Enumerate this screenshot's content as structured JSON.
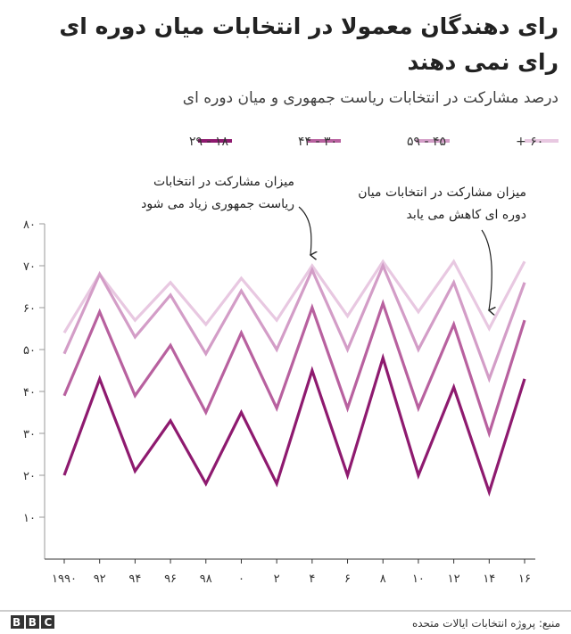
{
  "chart_data": {
    "type": "line",
    "title": "رای دهندگان معمولا در انتخابات میان دوره ای رای نمی دهند",
    "subtitle": "درصد مشارکت در انتخابات ریاست جمهوری و میان دوره ای",
    "x": [
      1990,
      1992,
      1994,
      1996,
      1998,
      2000,
      2002,
      2004,
      2006,
      2008,
      2010,
      2012,
      2014,
      2016
    ],
    "xlim": [
      1990,
      2016
    ],
    "xticks": [
      {
        "value": 1990,
        "label": "۱۹۹۰"
      },
      {
        "value": 1992,
        "label": "۹۲"
      },
      {
        "value": 1994,
        "label": "۹۴"
      },
      {
        "value": 1996,
        "label": "۹۶"
      },
      {
        "value": 1998,
        "label": "۹۸"
      },
      {
        "value": 2000,
        "label": "۰"
      },
      {
        "value": 2002,
        "label": "۲"
      },
      {
        "value": 2004,
        "label": "۴"
      },
      {
        "value": 2006,
        "label": "۶"
      },
      {
        "value": 2008,
        "label": "۸"
      },
      {
        "value": 2010,
        "label": "۱۰"
      },
      {
        "value": 2012,
        "label": "۱۲"
      },
      {
        "value": 2014,
        "label": "۱۴"
      },
      {
        "value": 2016,
        "label": "۱۶"
      }
    ],
    "ylim": [
      0,
      80
    ],
    "yticks": [
      {
        "value": 10,
        "label": "۱۰"
      },
      {
        "value": 20,
        "label": "۲۰"
      },
      {
        "value": 30,
        "label": "۳۰"
      },
      {
        "value": 40,
        "label": "۴۰"
      },
      {
        "value": 50,
        "label": "۵۰"
      },
      {
        "value": 60,
        "label": "۶۰"
      },
      {
        "value": 70,
        "label": "۷۰"
      },
      {
        "value": 80,
        "label": "۸۰"
      }
    ],
    "series": [
      {
        "name": "۱۸ - ۲۹",
        "color": "#8e1a6f",
        "values": [
          20,
          43,
          21,
          33,
          18,
          35,
          18,
          45,
          20,
          48,
          20,
          41,
          16,
          43
        ]
      },
      {
        "name": "۳۰ - ۴۴",
        "color": "#b8619f",
        "values": [
          39,
          59,
          39,
          51,
          35,
          54,
          36,
          60,
          36,
          61,
          36,
          56,
          30,
          57
        ]
      },
      {
        "name": "۴۵ - ۵۹",
        "color": "#d39dc7",
        "values": [
          49,
          68,
          53,
          63,
          49,
          64,
          50,
          69,
          50,
          70,
          50,
          66,
          43,
          66
        ]
      },
      {
        "name": "۶۰ +",
        "color": "#e8c8e1",
        "values": [
          54,
          68,
          57,
          66,
          56,
          67,
          57,
          70,
          58,
          71,
          59,
          71,
          55,
          71
        ]
      }
    ],
    "annotations": [
      {
        "lines": [
          "میزان مشارکت در انتخابات",
          "ریاست جمهوری زیاد می شود"
        ]
      },
      {
        "lines": [
          "میزان مشارکت در انتخابات میان",
          "دوره ای کاهش می یابد"
        ]
      }
    ],
    "source": "منبع: پروژه انتخابات ایالات متحده",
    "logo": "BBC"
  }
}
